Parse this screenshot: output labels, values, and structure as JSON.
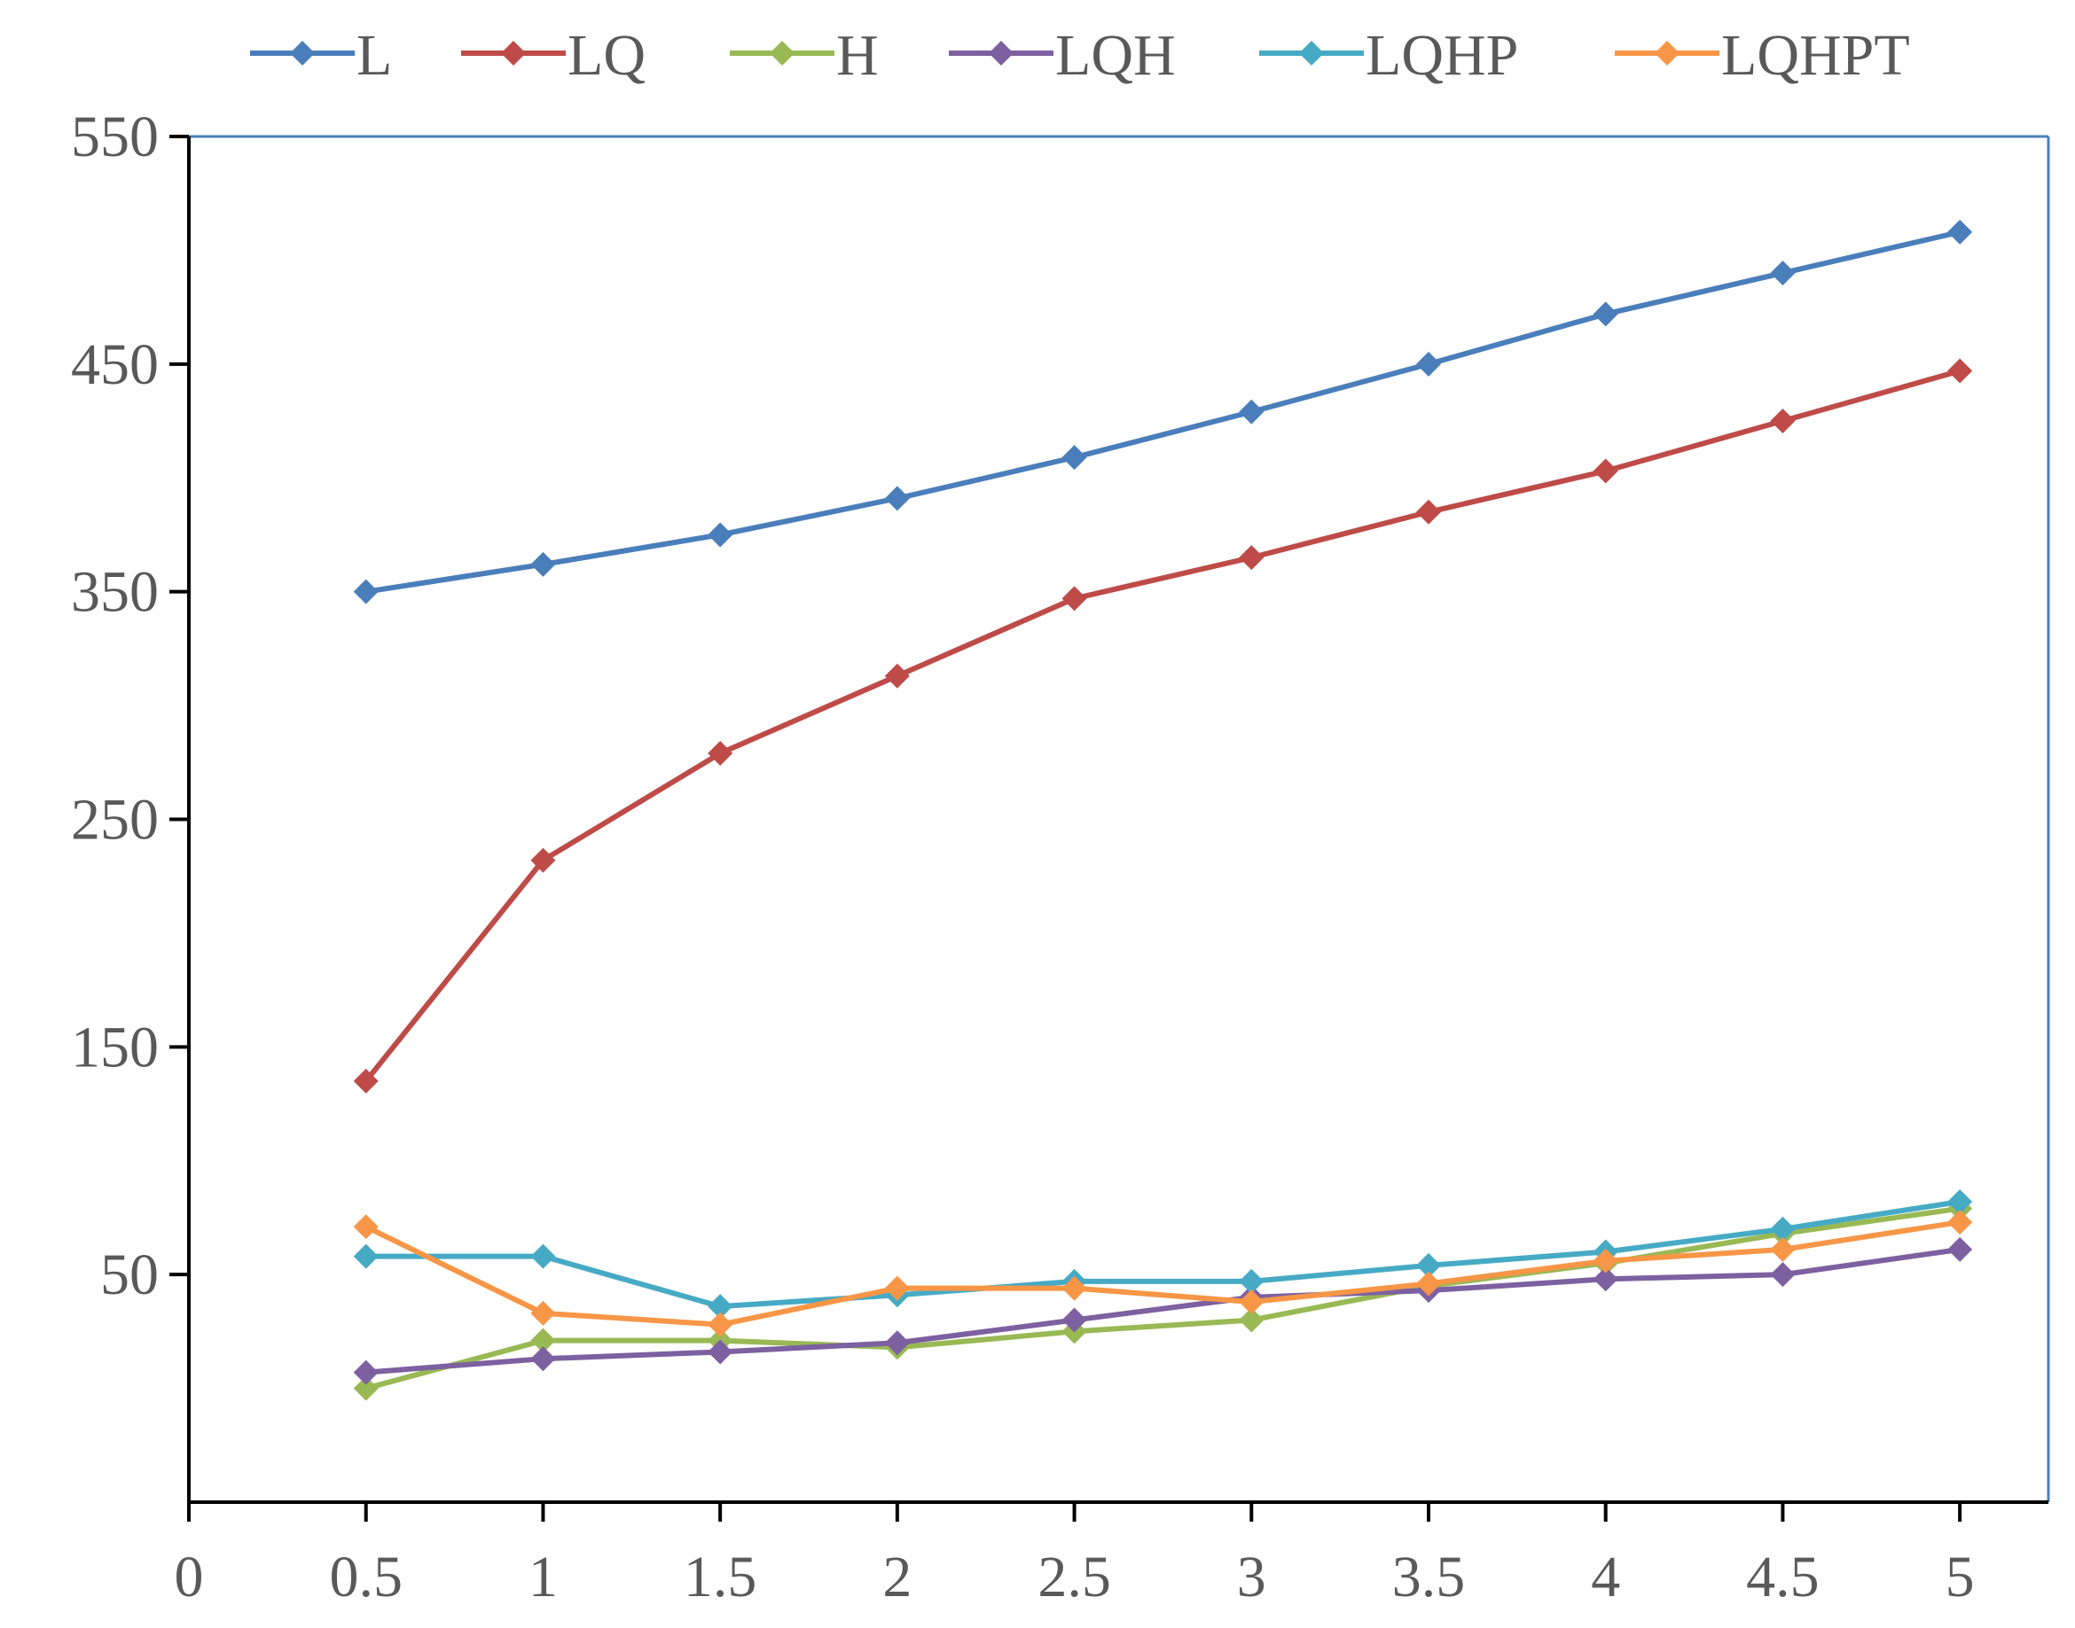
{
  "chart_data": {
    "type": "line",
    "title": "",
    "xlabel": "",
    "ylabel": "",
    "xlim": [
      0,
      5.25
    ],
    "ylim": [
      -50,
      550
    ],
    "x_ticks": [
      {
        "value": 0,
        "label": "0"
      },
      {
        "value": 0.5,
        "label": "0.5"
      },
      {
        "value": 1,
        "label": "1"
      },
      {
        "value": 1.5,
        "label": "1.5"
      },
      {
        "value": 2,
        "label": "2"
      },
      {
        "value": 2.5,
        "label": "2.5"
      },
      {
        "value": 3,
        "label": "3"
      },
      {
        "value": 3.5,
        "label": "3.5"
      },
      {
        "value": 4,
        "label": "4"
      },
      {
        "value": 4.5,
        "label": "4.5"
      },
      {
        "value": 5,
        "label": "5"
      }
    ],
    "y_ticks": [
      {
        "value": 50,
        "label": "50"
      },
      {
        "value": 150,
        "label": "150"
      },
      {
        "value": 250,
        "label": "250"
      },
      {
        "value": 350,
        "label": "350"
      },
      {
        "value": 450,
        "label": "450"
      },
      {
        "value": 550,
        "label": "550"
      }
    ],
    "grid": false,
    "legend_position": "top",
    "x": [
      0.5,
      1,
      1.5,
      2,
      2.5,
      3,
      3.5,
      4,
      4.5,
      5
    ],
    "series": [
      {
        "name": "L",
        "color": "#4A7EBB",
        "values": [
          350,
          362,
          375,
          391,
          409,
          429,
          450,
          472,
          490,
          508
        ]
      },
      {
        "name": "LQ",
        "color": "#BE4B48",
        "values": [
          135,
          232,
          279,
          313,
          347,
          365,
          385,
          403,
          425,
          447
        ]
      },
      {
        "name": "H",
        "color": "#98B954",
        "values": [
          0,
          21,
          21,
          18,
          25,
          30,
          45,
          55,
          68,
          79
        ]
      },
      {
        "name": "LQH",
        "color": "#7D60A0",
        "values": [
          7,
          13,
          16,
          20,
          30,
          40,
          43,
          48,
          50,
          61
        ]
      },
      {
        "name": "LQHP",
        "color": "#46AAC5",
        "values": [
          58,
          58,
          36,
          41,
          47,
          47,
          54,
          60,
          70,
          82
        ]
      },
      {
        "name": "LQHPT",
        "color": "#F79646",
        "values": [
          71,
          33,
          28,
          44,
          44,
          38,
          46,
          56,
          61,
          73
        ]
      }
    ]
  }
}
